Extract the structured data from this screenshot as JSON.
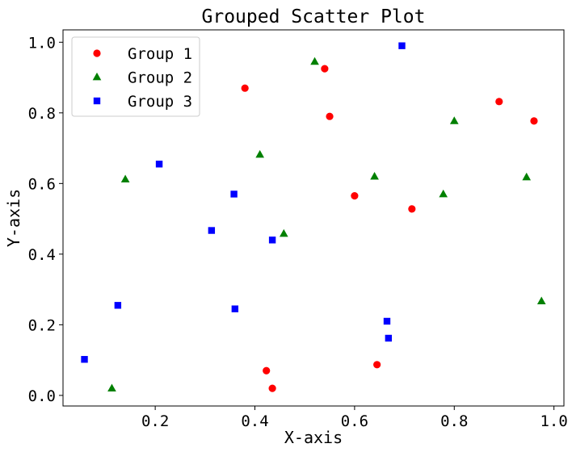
{
  "chart_data": {
    "type": "scatter",
    "title": "Grouped Scatter Plot",
    "xlabel": "X-axis",
    "ylabel": "Y-axis",
    "xlim": [
      0.015,
      1.02
    ],
    "ylim": [
      -0.03,
      1.035
    ],
    "xticks": [
      0.2,
      0.4,
      0.6,
      0.8,
      1.0
    ],
    "xtick_labels": [
      "0.2",
      "0.4",
      "0.6",
      "0.8",
      "1.0"
    ],
    "yticks": [
      0.0,
      0.2,
      0.4,
      0.6,
      0.8,
      1.0
    ],
    "ytick_labels": [
      "0.0",
      "0.2",
      "0.4",
      "0.6",
      "0.8",
      "1.0"
    ],
    "grid": false,
    "legend_position": "top-left",
    "series": [
      {
        "name": "Group 1",
        "color": "#ff0000",
        "marker": "circle",
        "points": [
          [
            0.38,
            0.87
          ],
          [
            0.54,
            0.925
          ],
          [
            0.55,
            0.79
          ],
          [
            0.6,
            0.565
          ],
          [
            0.715,
            0.528
          ],
          [
            0.89,
            0.832
          ],
          [
            0.96,
            0.777
          ],
          [
            0.423,
            0.07
          ],
          [
            0.435,
            0.02
          ],
          [
            0.645,
            0.087
          ]
        ]
      },
      {
        "name": "Group 2",
        "color": "#008000",
        "marker": "triangle",
        "points": [
          [
            0.52,
            0.945
          ],
          [
            0.41,
            0.682
          ],
          [
            0.14,
            0.612
          ],
          [
            0.458,
            0.458
          ],
          [
            0.64,
            0.62
          ],
          [
            0.8,
            0.777
          ],
          [
            0.778,
            0.57
          ],
          [
            0.945,
            0.618
          ],
          [
            0.975,
            0.267
          ],
          [
            0.113,
            0.02
          ]
        ]
      },
      {
        "name": "Group 3",
        "color": "#0000ff",
        "marker": "square",
        "points": [
          [
            0.695,
            0.99
          ],
          [
            0.208,
            0.655
          ],
          [
            0.358,
            0.57
          ],
          [
            0.313,
            0.467
          ],
          [
            0.435,
            0.44
          ],
          [
            0.125,
            0.255
          ],
          [
            0.36,
            0.245
          ],
          [
            0.665,
            0.21
          ],
          [
            0.668,
            0.162
          ],
          [
            0.058,
            0.102
          ]
        ]
      }
    ]
  }
}
